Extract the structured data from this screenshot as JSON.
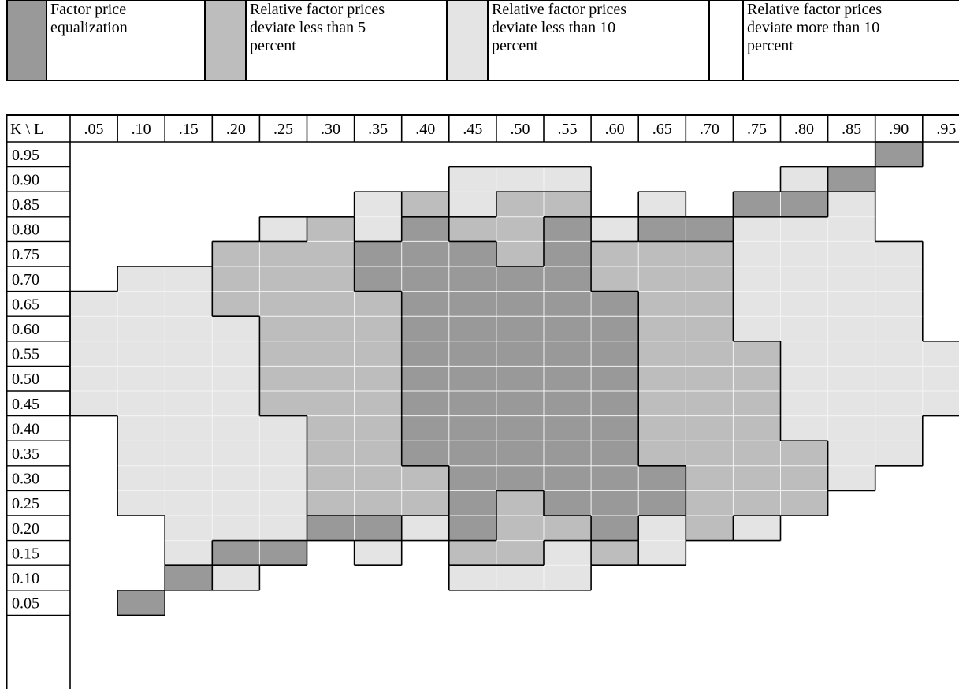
{
  "legend": [
    {
      "key": "fpe",
      "label": "Factor price\nequalization",
      "color": "#999999"
    },
    {
      "key": "lt5",
      "label": "Relative factor prices\ndeviate less than 5\npercent",
      "color": "#bdbdbd"
    },
    {
      "key": "lt10",
      "label": "Relative factor  prices\ndeviate less than 10\npercent",
      "color": "#e4e4e4"
    },
    {
      "key": "gt10",
      "label": "Relative factor  prices\ndeviate more than 10\npercent",
      "color": "#ffffff"
    }
  ],
  "chart_data": {
    "type": "heatmap",
    "corner_label": "K \\ L",
    "x_labels": [
      ".05",
      ".10",
      ".15",
      ".20",
      ".25",
      ".30",
      ".35",
      ".40",
      ".45",
      ".50",
      ".55",
      ".60",
      ".65",
      ".70",
      ".75",
      ".80",
      ".85",
      ".90",
      ".95"
    ],
    "y_labels": [
      "0.95",
      "0.90",
      "0.85",
      "0.80",
      "0.75",
      "0.70",
      "0.65",
      " 0.60",
      "0.55",
      "0.50",
      "0.45",
      "0.40",
      "0.35",
      "0.30",
      "0.25",
      "0.20",
      "0.15",
      "0.10",
      "0.05"
    ],
    "category_keys": [
      "gt10",
      "lt10",
      "lt5",
      "fpe"
    ],
    "values": [
      [
        0,
        0,
        0,
        0,
        0,
        0,
        0,
        0,
        0,
        0,
        0,
        0,
        0,
        0,
        0,
        0,
        0,
        3,
        0
      ],
      [
        0,
        0,
        0,
        0,
        0,
        0,
        0,
        0,
        1,
        1,
        1,
        0,
        0,
        0,
        0,
        1,
        3,
        0,
        0
      ],
      [
        0,
        0,
        0,
        0,
        0,
        0,
        1,
        2,
        1,
        2,
        2,
        0,
        1,
        0,
        3,
        3,
        1,
        0,
        0
      ],
      [
        0,
        0,
        0,
        0,
        1,
        2,
        1,
        3,
        2,
        2,
        3,
        1,
        3,
        3,
        1,
        1,
        1,
        0,
        0
      ],
      [
        0,
        0,
        0,
        2,
        2,
        2,
        3,
        3,
        3,
        2,
        3,
        2,
        2,
        2,
        1,
        1,
        1,
        1,
        0
      ],
      [
        0,
        1,
        1,
        2,
        2,
        2,
        3,
        3,
        3,
        3,
        3,
        2,
        2,
        2,
        1,
        1,
        1,
        1,
        0
      ],
      [
        1,
        1,
        1,
        2,
        2,
        2,
        2,
        3,
        3,
        3,
        3,
        3,
        2,
        2,
        1,
        1,
        1,
        1,
        0
      ],
      [
        1,
        1,
        1,
        1,
        2,
        2,
        2,
        3,
        3,
        3,
        3,
        3,
        2,
        2,
        1,
        1,
        1,
        1,
        0
      ],
      [
        1,
        1,
        1,
        1,
        2,
        2,
        2,
        3,
        3,
        3,
        3,
        3,
        2,
        2,
        2,
        1,
        1,
        1,
        1
      ],
      [
        1,
        1,
        1,
        1,
        2,
        2,
        2,
        3,
        3,
        3,
        3,
        3,
        2,
        2,
        2,
        1,
        1,
        1,
        1
      ],
      [
        1,
        1,
        1,
        1,
        2,
        2,
        2,
        3,
        3,
        3,
        3,
        3,
        2,
        2,
        2,
        1,
        1,
        1,
        1
      ],
      [
        0,
        1,
        1,
        1,
        1,
        2,
        2,
        3,
        3,
        3,
        3,
        3,
        2,
        2,
        2,
        1,
        1,
        1,
        0
      ],
      [
        0,
        1,
        1,
        1,
        1,
        2,
        2,
        3,
        3,
        3,
        3,
        3,
        2,
        2,
        2,
        2,
        1,
        1,
        0
      ],
      [
        0,
        1,
        1,
        1,
        1,
        2,
        2,
        2,
        3,
        3,
        3,
        3,
        3,
        2,
        2,
        2,
        1,
        0,
        0
      ],
      [
        0,
        1,
        1,
        1,
        1,
        2,
        2,
        2,
        3,
        2,
        3,
        3,
        3,
        2,
        2,
        2,
        0,
        0,
        0
      ],
      [
        0,
        0,
        1,
        1,
        1,
        3,
        3,
        1,
        3,
        2,
        2,
        3,
        1,
        2,
        1,
        0,
        0,
        0,
        0
      ],
      [
        0,
        0,
        1,
        3,
        3,
        0,
        1,
        0,
        2,
        2,
        1,
        2,
        1,
        0,
        0,
        0,
        0,
        0,
        0
      ],
      [
        0,
        0,
        3,
        1,
        0,
        0,
        0,
        0,
        1,
        1,
        1,
        0,
        0,
        0,
        0,
        0,
        0,
        0,
        0
      ],
      [
        0,
        3,
        0,
        0,
        0,
        0,
        0,
        0,
        0,
        0,
        0,
        0,
        0,
        0,
        0,
        0,
        0,
        0,
        0
      ]
    ]
  }
}
